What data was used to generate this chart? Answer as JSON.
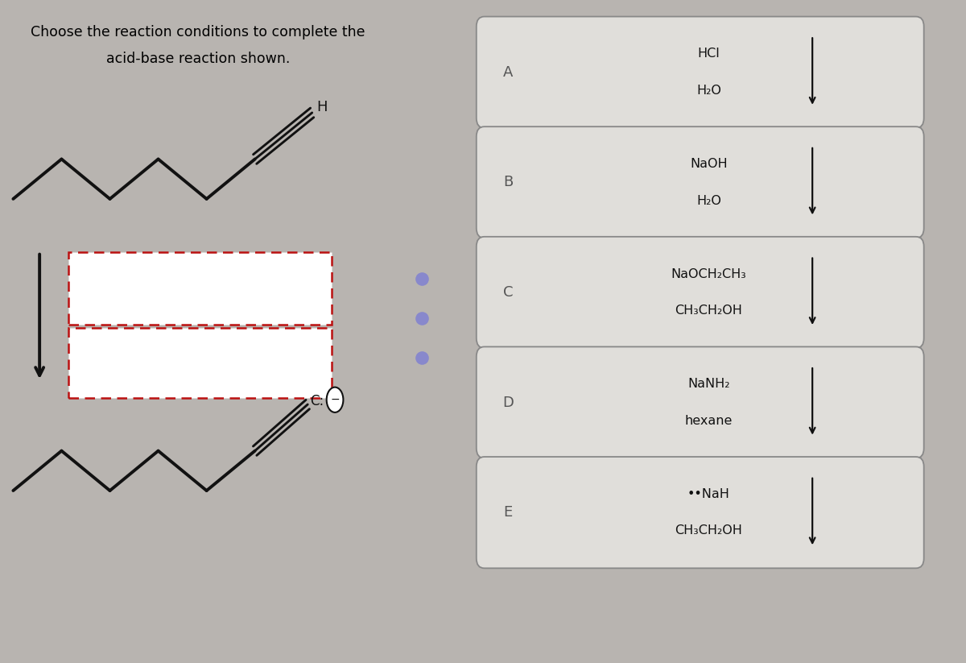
{
  "title_line1": "Choose the reaction conditions to complete the",
  "title_line2": "acid-base reaction shown.",
  "title_fontsize": 12.5,
  "bg_left_color": "#b8b4b0",
  "bg_right_color": "#c0bcb8",
  "options": [
    {
      "label": "A",
      "line1": "HCl",
      "line2": "H₂O"
    },
    {
      "label": "B",
      "line1": "NaOH",
      "line2": "H₂O"
    },
    {
      "label": "C",
      "line1": "NaOCH₂CH₃",
      "line2": "CH₃CH₂OH"
    },
    {
      "label": "D",
      "line1": "NaNH₂",
      "line2": "hexane"
    },
    {
      "label": "E",
      "line1": "••NaH",
      "line2": "CH₃CH₂OH"
    }
  ],
  "box_dash_color": "#bb1111",
  "arrow_color": "#111111",
  "option_box_facecolor": "#e0deda",
  "option_box_edge": "#888888",
  "option_label_color": "#555555",
  "option_text_color": "#111111",
  "red_bar_color": "#cc1111",
  "dot_color": "#8888cc"
}
